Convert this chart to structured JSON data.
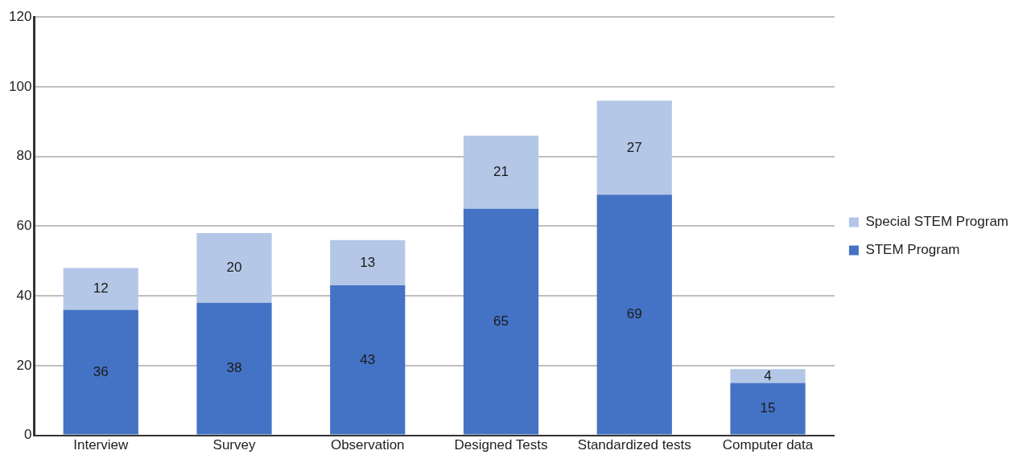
{
  "chart_data": {
    "type": "bar",
    "stacked": true,
    "categories": [
      "Interview",
      "Survey",
      "Observation",
      "Designed Tests",
      "Standardized tests",
      "Computer data"
    ],
    "series": [
      {
        "name": "STEM Program",
        "color": "#4472c4",
        "values": [
          36,
          38,
          43,
          65,
          69,
          15
        ]
      },
      {
        "name": "Special STEM Program",
        "color": "#b4c7e7",
        "values": [
          12,
          20,
          13,
          21,
          27,
          4
        ]
      }
    ],
    "ylim": [
      0,
      120
    ],
    "yticks": [
      0,
      20,
      40,
      60,
      80,
      100,
      120
    ],
    "grid": "y",
    "legend": "right",
    "data_labels": true
  }
}
